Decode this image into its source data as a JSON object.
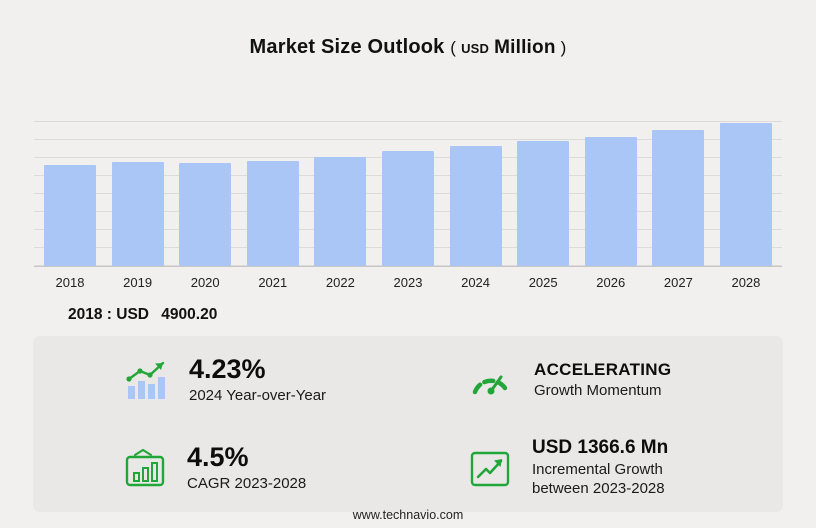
{
  "header": {
    "title": "Market Size Outlook",
    "unit": {
      "open": "(",
      "currency": "USD",
      "magnitude": "Million",
      "close": ")"
    }
  },
  "chart_data": {
    "type": "bar",
    "title": "Market Size Outlook (USD Million)",
    "categories": [
      "2018",
      "2019",
      "2020",
      "2021",
      "2022",
      "2023",
      "2024",
      "2025",
      "2026",
      "2027",
      "2028"
    ],
    "values": [
      4900.2,
      5015,
      4955,
      5080,
      5280,
      5551.4,
      5786.2,
      6020,
      6240,
      6550,
      6918
    ],
    "xlabel": "",
    "ylabel": "USD Million",
    "ylim": [
      0,
      7000
    ],
    "grid": true,
    "legend": false,
    "bar_color": "#a9c6f7"
  },
  "year_note": {
    "label": "2018 : USD",
    "value": "4900.20"
  },
  "stats": [
    {
      "icon": "yoy-bar-trend-icon",
      "value": "4.23%",
      "label": "2024 Year-over-Year"
    },
    {
      "icon": "speedometer-icon",
      "value": "ACCELERATING",
      "label": "Growth Momentum"
    },
    {
      "icon": "cagr-chart-icon",
      "value": "4.5%",
      "label": "CAGR 2023-2028"
    },
    {
      "icon": "incremental-growth-icon",
      "value": "USD 1366.6 Mn",
      "label": "Incremental Growth between 2023-2028"
    }
  ],
  "footer": {
    "url": "www.technavio.com"
  },
  "colors": {
    "accent_green": "#22a63a",
    "bar_fill": "#a9c6f7",
    "background": "#f1f0ef",
    "panel": "#e9e8e6"
  }
}
